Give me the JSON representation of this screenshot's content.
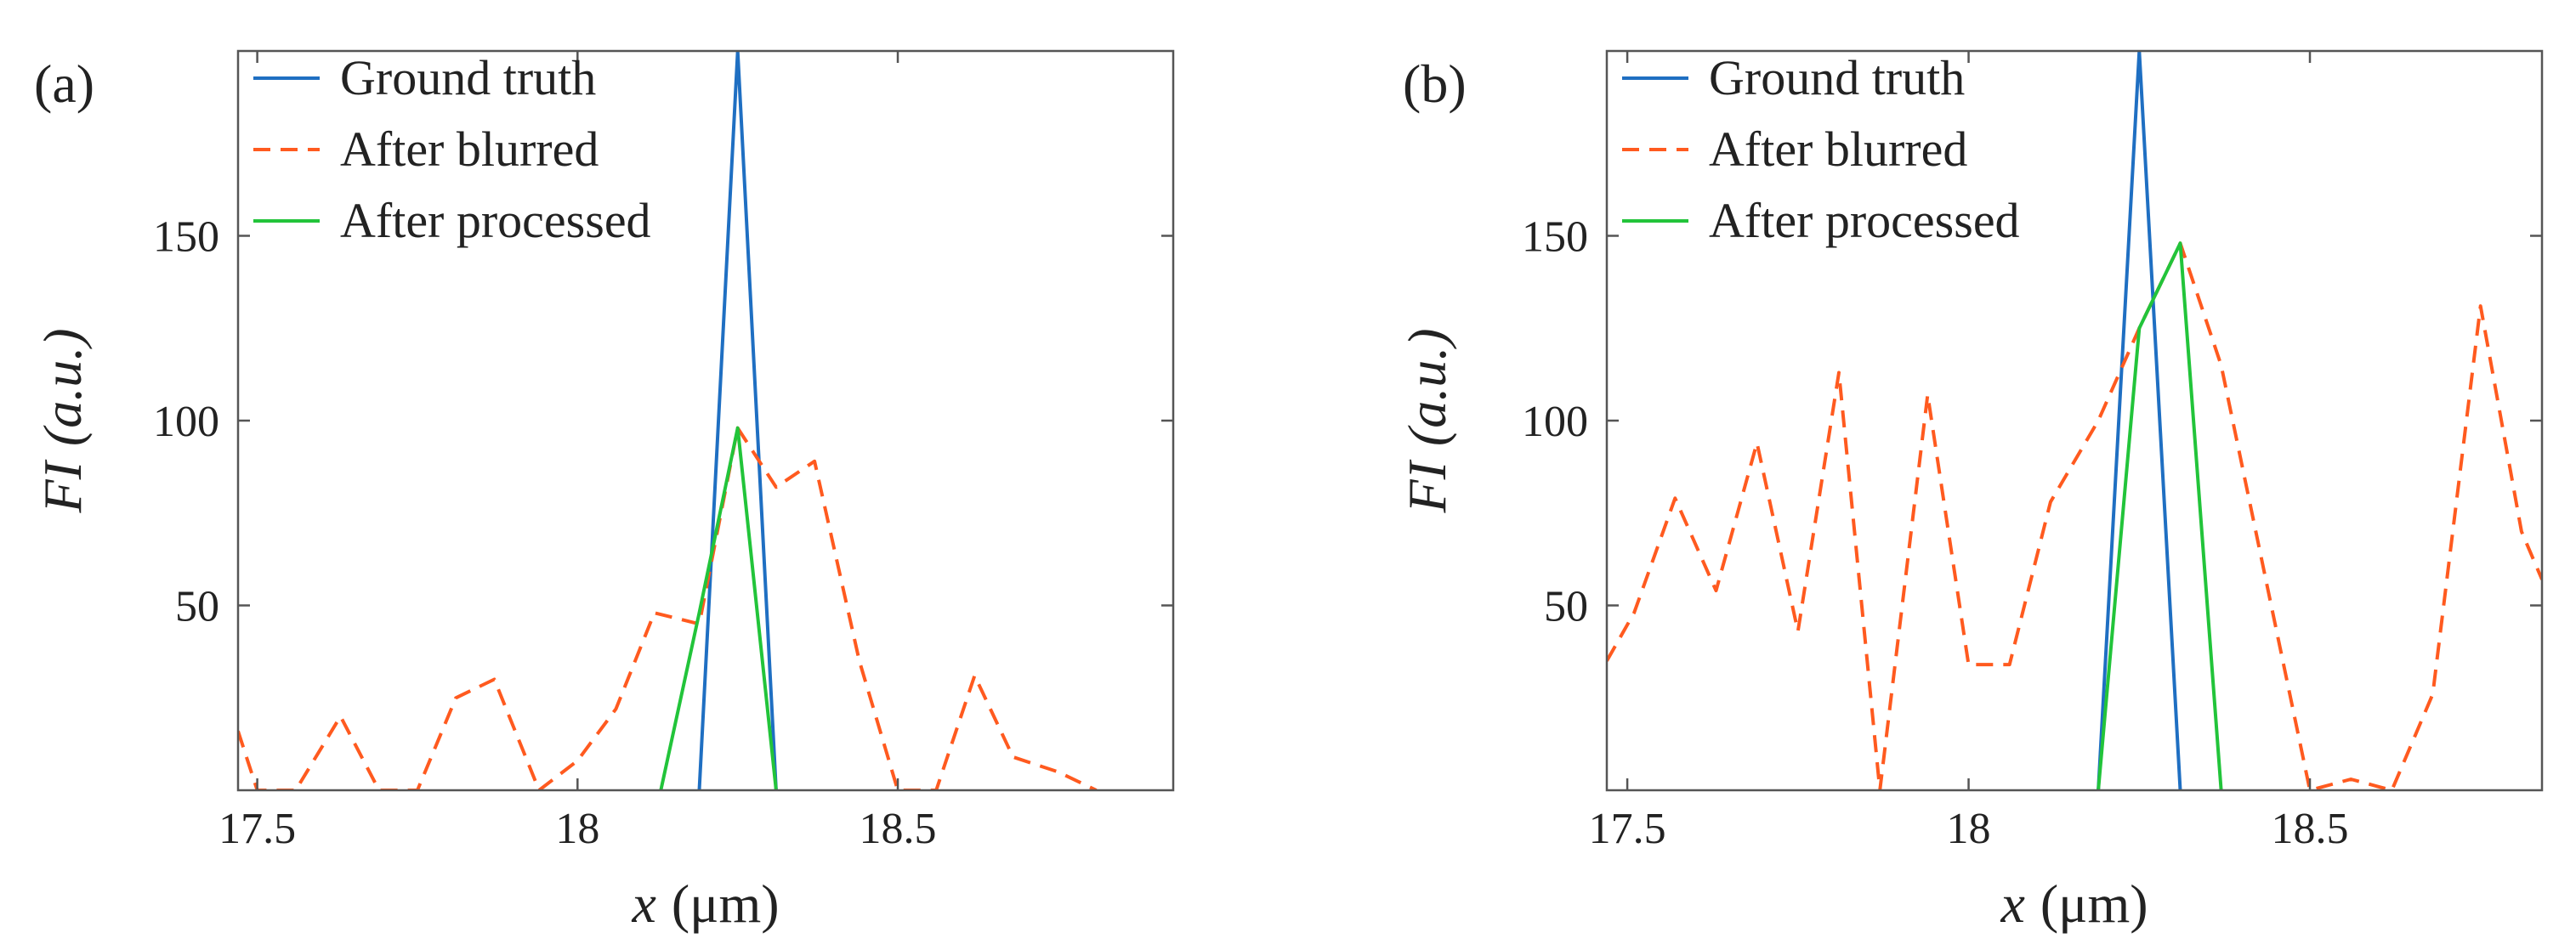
{
  "chart_data": [
    {
      "type": "line",
      "panel_label": "(a)",
      "xlabel_symbol": "x",
      "xlabel_unit": "(μm)",
      "ylabel_symbol": "FI",
      "ylabel_unit": "(a.u.)",
      "xlim": [
        17.47,
        18.93
      ],
      "ylim": [
        0,
        200
      ],
      "xticks": [
        17.5,
        18,
        18.5
      ],
      "xtick_labels": [
        "17.5",
        "18",
        "18.5"
      ],
      "yticks": [
        50,
        100,
        150
      ],
      "ytick_labels": [
        "50",
        "100",
        "150"
      ],
      "grid": false,
      "legend_position": "top-left",
      "series": [
        {
          "name": "Ground truth",
          "color": "#1f6fc2",
          "dash": "solid",
          "x": [
            18.19,
            18.25,
            18.31
          ],
          "y": [
            0,
            200,
            0
          ]
        },
        {
          "name": "After blurred",
          "color": "#ff5a1f",
          "dash": "dashed",
          "x": [
            17.47,
            17.5,
            17.56,
            17.63,
            17.69,
            17.75,
            17.81,
            17.87,
            17.94,
            18.0,
            18.06,
            18.12,
            18.19,
            18.25,
            18.31,
            18.37,
            18.44,
            18.5,
            18.56,
            18.62,
            18.68,
            18.75,
            18.81
          ],
          "y": [
            16,
            0,
            0,
            20,
            0,
            0,
            25,
            30,
            0,
            8,
            22,
            48,
            45,
            98,
            82,
            89,
            35,
            0,
            0,
            31,
            9,
            5,
            0
          ]
        },
        {
          "name": "After processed",
          "color": "#22c43a",
          "dash": "solid",
          "x": [
            18.13,
            18.19,
            18.25,
            18.31
          ],
          "y": [
            0,
            48,
            98,
            0
          ]
        }
      ]
    },
    {
      "type": "line",
      "panel_label": "(b)",
      "xlabel_symbol": "x",
      "xlabel_unit": "(μm)",
      "ylabel_symbol": "FI",
      "ylabel_unit": "(a.u.)",
      "xlim": [
        17.47,
        18.84
      ],
      "ylim": [
        0,
        200
      ],
      "xticks": [
        17.5,
        18,
        18.5
      ],
      "xtick_labels": [
        "17.5",
        "18",
        "18.5"
      ],
      "yticks": [
        50,
        100,
        150
      ],
      "ytick_labels": [
        "50",
        "100",
        "150"
      ],
      "grid": false,
      "legend_position": "top-left",
      "series": [
        {
          "name": "Ground truth",
          "color": "#1f6fc2",
          "dash": "solid",
          "x": [
            18.19,
            18.25,
            18.31
          ],
          "y": [
            0,
            200,
            0
          ]
        },
        {
          "name": "After blurred",
          "color": "#ff5a1f",
          "dash": "dashed",
          "x": [
            17.47,
            17.51,
            17.57,
            17.63,
            17.69,
            17.75,
            17.81,
            17.87,
            17.94,
            18.0,
            18.06,
            18.12,
            18.19,
            18.25,
            18.31,
            18.37,
            18.44,
            18.5,
            18.56,
            18.62,
            18.68,
            18.75,
            18.81,
            18.84
          ],
          "y": [
            35,
            48,
            79,
            54,
            94,
            43,
            113,
            0,
            107,
            34,
            34,
            78,
            100,
            125,
            148,
            115,
            53,
            0,
            3,
            0,
            26,
            131,
            70,
            57
          ]
        },
        {
          "name": "After processed",
          "color": "#22c43a",
          "dash": "solid",
          "x": [
            18.19,
            18.25,
            18.31,
            18.37
          ],
          "y": [
            0,
            125,
            148,
            0
          ]
        }
      ]
    }
  ]
}
